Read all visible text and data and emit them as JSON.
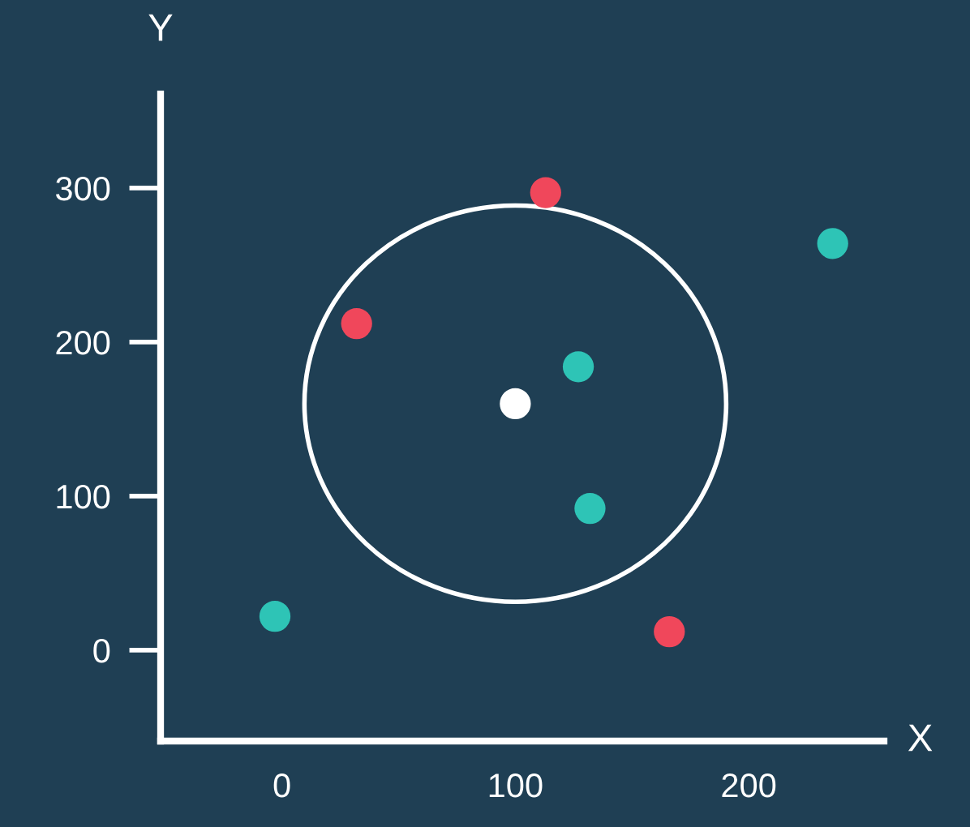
{
  "chart_data": {
    "type": "scatter",
    "xlabel": "X",
    "ylabel": "Y",
    "series": [
      {
        "color": "#f0475b",
        "x": [
          113,
          32,
          166
        ],
        "values": [
          297,
          212,
          12
        ]
      },
      {
        "color": "#2ec4b6",
        "x": [
          -3,
          127,
          132,
          236
        ],
        "values": [
          22,
          184,
          92,
          264
        ]
      },
      {
        "color": "#ffffff",
        "x": [
          100
        ],
        "values": [
          160
        ]
      }
    ],
    "xlim": [
      -52,
      258
    ],
    "ylim": [
      -59,
      361
    ],
    "xticks": [
      0,
      100,
      200
    ],
    "yticks": [
      0,
      100,
      200,
      300
    ],
    "grid": false,
    "legend": false,
    "marker": "circle"
  }
}
